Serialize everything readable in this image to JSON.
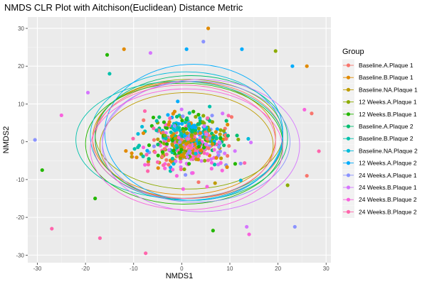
{
  "chart_data": {
    "type": "scatter",
    "title": "NMDS CLR Plot with Aitchison(Euclidean) Distance Metric",
    "xlabel": "NMDS1",
    "ylabel": "NMDS2",
    "xlim": [
      -32,
      31
    ],
    "ylim": [
      -32,
      33
    ],
    "x_ticks": [
      -30,
      -20,
      -10,
      0,
      10,
      20,
      30
    ],
    "y_ticks": [
      -30,
      -20,
      -10,
      0,
      10,
      20,
      30
    ],
    "grid": true,
    "legend": {
      "title": "Group",
      "placement": "right"
    },
    "series": [
      {
        "name": "Baseline.A.Plaque 1",
        "color": "#F8766D",
        "ellipse": {
          "cx": 1.5,
          "cy": 0.5,
          "rx": 19.5,
          "ry": 15.5
        }
      },
      {
        "name": "Baseline.B.Plaque 1",
        "color": "#E18A00",
        "ellipse": {
          "cx": 0.5,
          "cy": 1.0,
          "rx": 19.0,
          "ry": 15.0
        }
      },
      {
        "name": "Baseline.NA.Plaque 1",
        "color": "#BE9C00",
        "ellipse": {
          "cx": 1.0,
          "cy": -1.0,
          "rx": 18.0,
          "ry": 14.0
        }
      },
      {
        "name": "12 Weeks.A.Plaque 1",
        "color": "#8CAB00",
        "ellipse": {
          "cx": 1.5,
          "cy": 2.0,
          "rx": 19.5,
          "ry": 14.5
        }
      },
      {
        "name": "12 Weeks.B.Plaque 1",
        "color": "#24B700",
        "ellipse": {
          "cx": 0.5,
          "cy": -0.5,
          "rx": 20.5,
          "ry": 16.0
        }
      },
      {
        "name": "Baseline.A.Plaque 2",
        "color": "#00BE70",
        "ellipse": {
          "cx": 2.0,
          "cy": 1.0,
          "rx": 20.0,
          "ry": 16.5
        }
      },
      {
        "name": "Baseline.B.Plaque 2",
        "color": "#00C1AB",
        "ellipse": {
          "cx": -0.5,
          "cy": 0.5,
          "rx": 21.5,
          "ry": 15.5
        }
      },
      {
        "name": "Baseline.NA.Plaque 2",
        "color": "#00BBDA",
        "ellipse": {
          "cx": 1.0,
          "cy": 1.5,
          "rx": 20.0,
          "ry": 17.0
        }
      },
      {
        "name": "12 Weeks.A.Plaque 2",
        "color": "#00ACFC",
        "ellipse": {
          "cx": 2.5,
          "cy": 2.5,
          "rx": 18.5,
          "ry": 18.0
        }
      },
      {
        "name": "24 Weeks.A.Plaque 1",
        "color": "#8B93FF",
        "ellipse": {
          "cx": 3.0,
          "cy": 0.0,
          "rx": 19.5,
          "ry": 16.0
        }
      },
      {
        "name": "24 Weeks.B.Plaque 1",
        "color": "#D575FE",
        "ellipse": {
          "cx": 4.0,
          "cy": -1.0,
          "rx": 20.5,
          "ry": 17.5
        }
      },
      {
        "name": "24 Weeks.B.Plaque 2",
        "color": "#F962DD",
        "ellipse": {
          "cx": 1.0,
          "cy": -2.0,
          "rx": 20.0,
          "ry": 16.0
        }
      },
      {
        "name": "24 Weeks.B.Plaque 2",
        "color": "#FF65AC",
        "ellipse": {
          "cx": 0.5,
          "cy": 0.0,
          "rx": 19.0,
          "ry": 15.0
        }
      }
    ],
    "outlier_points": [
      {
        "x": 5.5,
        "y": 30.0,
        "c": 1
      },
      {
        "x": 26.0,
        "y": 20.0,
        "c": 1
      },
      {
        "x": 12.5,
        "y": 24.5,
        "c": 8
      },
      {
        "x": 19.5,
        "y": 24.0,
        "c": 3
      },
      {
        "x": -6.5,
        "y": 23.5,
        "c": 10
      },
      {
        "x": -12.0,
        "y": 24.5,
        "c": 1
      },
      {
        "x": -15.5,
        "y": 23.0,
        "c": 4
      },
      {
        "x": 1.0,
        "y": 24.5,
        "c": 8
      },
      {
        "x": 4.5,
        "y": 26.5,
        "c": 9
      },
      {
        "x": -30.5,
        "y": 0.5,
        "c": 9
      },
      {
        "x": -29.0,
        "y": -7.5,
        "c": 4
      },
      {
        "x": -27.0,
        "y": -23.0,
        "c": 12
      },
      {
        "x": -25.0,
        "y": 7.0,
        "c": 11
      },
      {
        "x": -17.0,
        "y": -25.5,
        "c": 12
      },
      {
        "x": -7.5,
        "y": -29.5,
        "c": 12
      },
      {
        "x": 6.5,
        "y": -23.5,
        "c": 4
      },
      {
        "x": 14.0,
        "y": -24.5,
        "c": 11
      },
      {
        "x": 13.5,
        "y": -22.5,
        "c": 10
      },
      {
        "x": 23.5,
        "y": -22.5,
        "c": 9
      },
      {
        "x": 22.0,
        "y": -11.5,
        "c": 3
      },
      {
        "x": 26.0,
        "y": -9.0,
        "c": 0
      },
      {
        "x": 28.5,
        "y": -2.5,
        "c": 12
      },
      {
        "x": 27.0,
        "y": 7.5,
        "c": 0
      },
      {
        "x": 25.5,
        "y": 8.5,
        "c": 11
      },
      {
        "x": 23.0,
        "y": 20.0,
        "c": 8
      },
      {
        "x": -18.0,
        "y": -15.0,
        "c": 4
      },
      {
        "x": -19.5,
        "y": 13.0,
        "c": 10
      },
      {
        "x": -15.0,
        "y": 18.0,
        "c": 6
      }
    ]
  }
}
